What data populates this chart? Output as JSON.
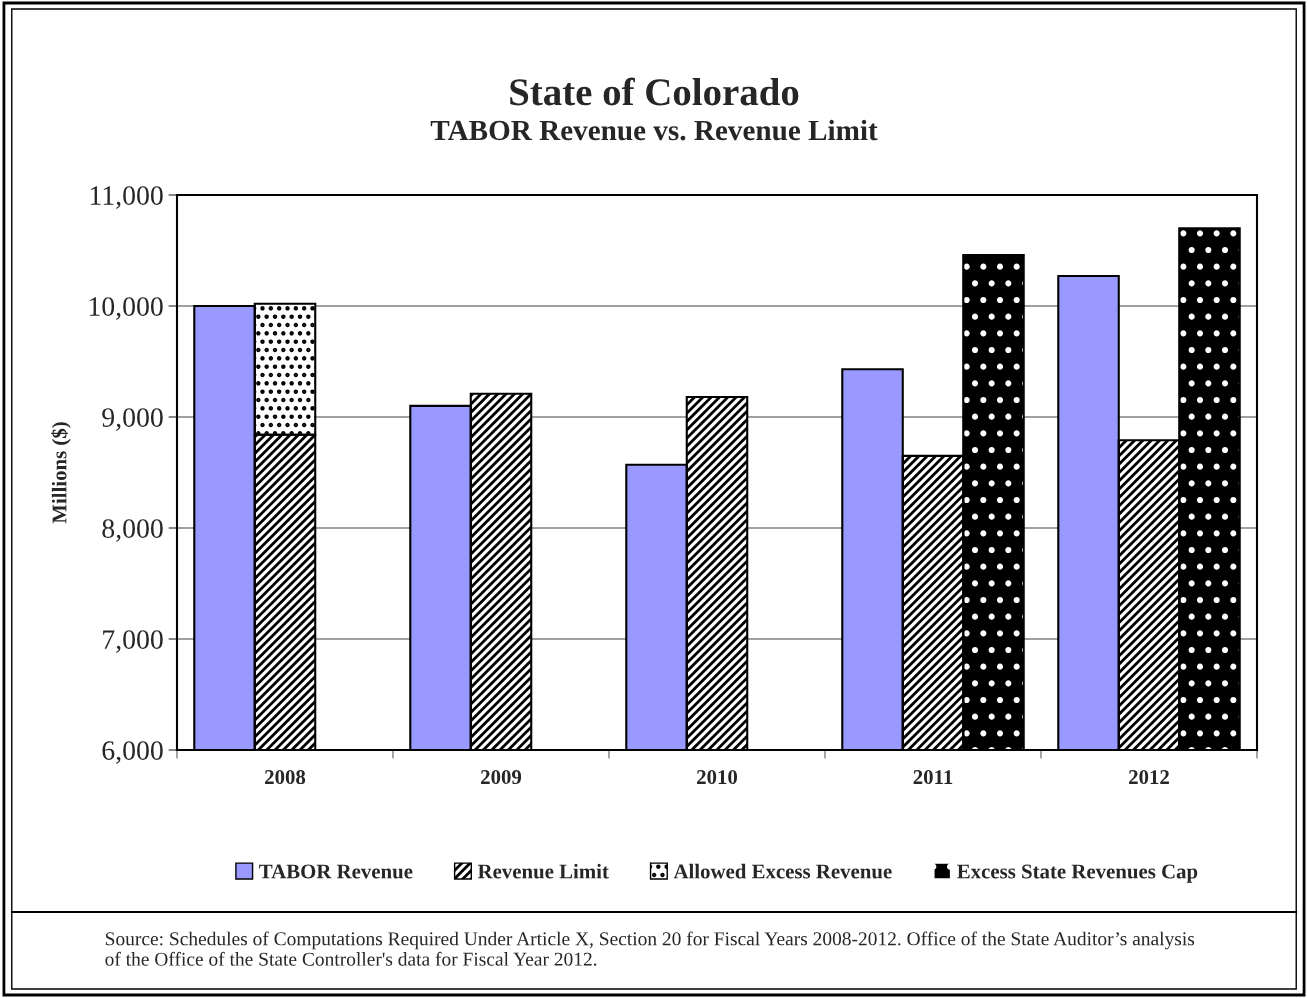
{
  "chart_data": {
    "type": "bar",
    "title": "State of Colorado",
    "subtitle": "TABOR Revenue vs. Revenue Limit",
    "ylabel": "Millions ($)",
    "categories": [
      "2008",
      "2009",
      "2010",
      "2011",
      "2012"
    ],
    "series": [
      {
        "name": "TABOR Revenue",
        "color": "#9999ff",
        "values": [
          10000,
          9100,
          8570,
          9430,
          10270
        ]
      },
      {
        "name": "Revenue Limit",
        "color": "#ffffff",
        "values": [
          8840,
          9210,
          9180,
          8650,
          8790
        ]
      },
      {
        "name": "Allowed Excess Revenue",
        "color": "#ffffff",
        "values": [
          1180,
          null,
          null,
          null,
          null
        ],
        "base": [
          8840,
          null,
          null,
          null,
          null
        ]
      },
      {
        "name": "Excess State Revenues Cap",
        "color": "#000000",
        "values": [
          null,
          null,
          null,
          10460,
          10700
        ]
      }
    ],
    "ylim": [
      6000,
      11000
    ],
    "yticks": [
      {
        "value": 6000,
        "label": "6,000"
      },
      {
        "value": 7000,
        "label": "7,000"
      },
      {
        "value": 8000,
        "label": "8,000"
      },
      {
        "value": 9000,
        "label": "9,000"
      },
      {
        "value": 10000,
        "label": "10,000"
      },
      {
        "value": 11000,
        "label": "11,000"
      }
    ],
    "grid": "y",
    "legend": "bottom",
    "annotations": [
      "Source: Schedules of Computations Required Under Article X, Section 20 for Fiscal Years 2008-2012. Office of the State Auditor’s analysis of the Office of the State Controller's data for Fiscal Year 2012."
    ]
  }
}
